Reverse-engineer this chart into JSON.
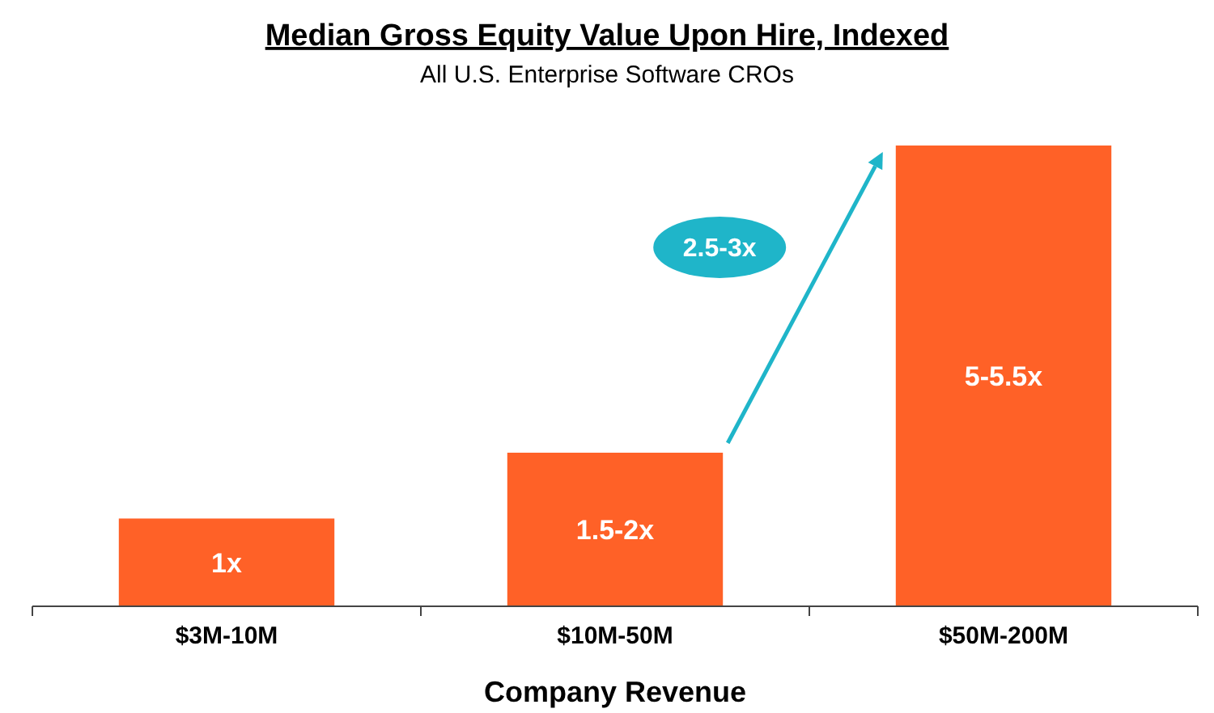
{
  "chart_data": {
    "type": "bar",
    "title": "Median Gross Equity Value Upon Hire, Indexed",
    "subtitle": "All U.S. Enterprise Software CROs",
    "xlabel": "Company Revenue",
    "categories": [
      "$3M-10M",
      "$10M-50M",
      "$50M-200M"
    ],
    "values": [
      1,
      1.75,
      5.25
    ],
    "value_labels": [
      "1x",
      "1.5-2x",
      "5-5.5x"
    ],
    "color": "#ff6127",
    "annotations": [
      "2.5-3x"
    ]
  }
}
